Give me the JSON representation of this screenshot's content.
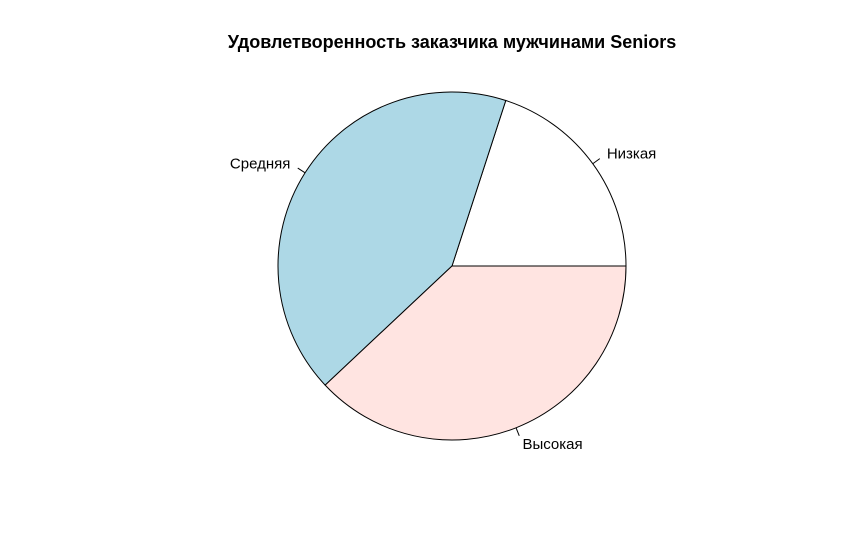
{
  "chart_data": {
    "type": "pie",
    "title": "Удовлетворенность заказчика мужчинами Seniors",
    "categories": [
      "Низкая",
      "Средняя",
      "Высокая"
    ],
    "values": [
      20,
      42,
      38
    ],
    "colors": [
      "#ffffff",
      "#add8e6",
      "#ffe4e1"
    ],
    "border_color": "#000000",
    "start": "3 o'clock",
    "direction": "counterclockwise"
  }
}
